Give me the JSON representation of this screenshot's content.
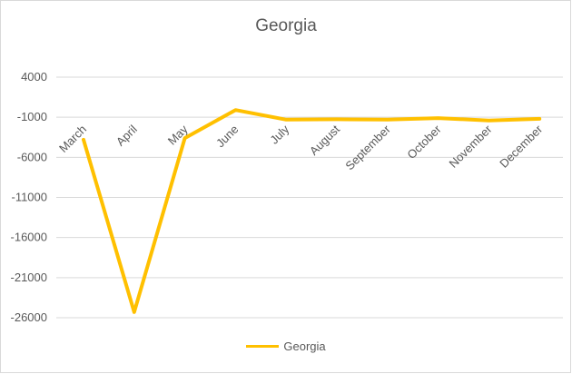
{
  "chart_data": {
    "type": "line",
    "title": "Georgia",
    "xlabel": "",
    "ylabel": "",
    "categories": [
      "March",
      "April",
      "May",
      "June",
      "July",
      "August",
      "September",
      "October",
      "November",
      "December"
    ],
    "series": [
      {
        "name": "Georgia",
        "color": "#FFC000",
        "values": [
          -3800,
          -25300,
          -3600,
          -100,
          -1300,
          -1250,
          -1300,
          -1100,
          -1400,
          -1200
        ]
      }
    ],
    "y_ticks": [
      4000,
      -1000,
      -6000,
      -11000,
      -16000,
      -21000,
      -26000
    ],
    "ylim": [
      -26000,
      4000
    ],
    "grid": true,
    "legend_position": "bottom"
  }
}
